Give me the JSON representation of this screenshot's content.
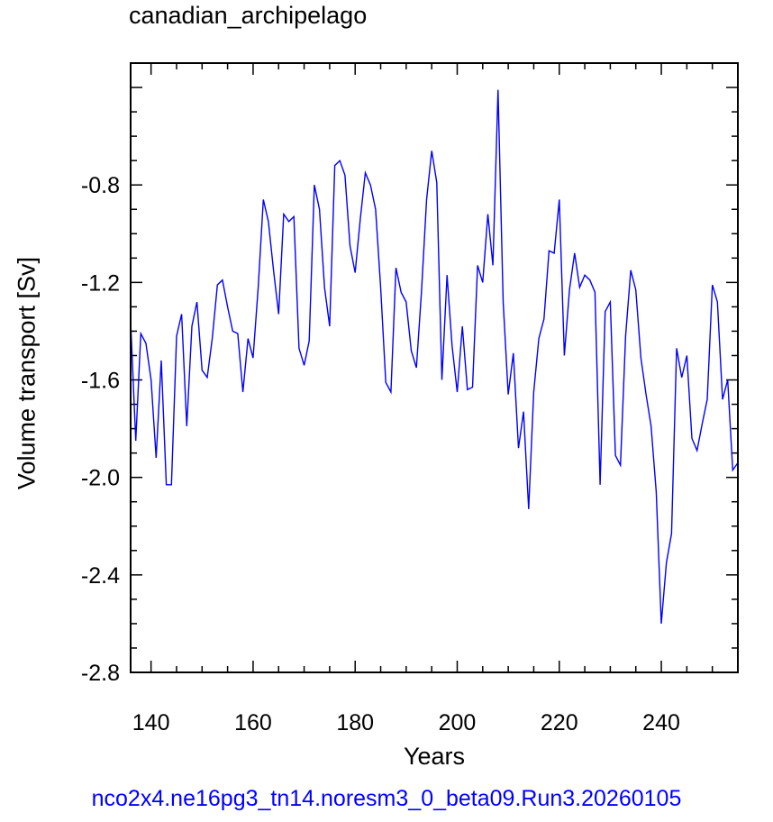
{
  "title": "canadian_archipelago",
  "footer": "nco2x4.ne16pg3_tn14.noresm3_0_beta09.Run3.20260105",
  "chart_data": {
    "type": "line",
    "title": "canadian_archipelago",
    "xlabel": "Years",
    "ylabel": "Volume transport [Sv]",
    "xlim": [
      136,
      255
    ],
    "ylim": [
      -2.8,
      -0.3
    ],
    "xticks": [
      140,
      160,
      180,
      200,
      220,
      240
    ],
    "yticks": [
      -2.8,
      -2.4,
      -2.0,
      -1.6,
      -1.2,
      -0.8
    ],
    "ytick_labels": [
      "-2.8",
      "-2.4",
      "-2.0",
      "-1.6",
      "-1.2",
      "-0.8"
    ],
    "line_color": "#0000ff",
    "grid": false,
    "x": [
      136,
      137,
      138,
      139,
      140,
      141,
      142,
      143,
      144,
      145,
      146,
      147,
      148,
      149,
      150,
      151,
      152,
      153,
      154,
      155,
      156,
      157,
      158,
      159,
      160,
      161,
      162,
      163,
      164,
      165,
      166,
      167,
      168,
      169,
      170,
      171,
      172,
      173,
      174,
      175,
      176,
      177,
      178,
      179,
      180,
      181,
      182,
      183,
      184,
      185,
      186,
      187,
      188,
      189,
      190,
      191,
      192,
      193,
      194,
      195,
      196,
      197,
      198,
      199,
      200,
      201,
      202,
      203,
      204,
      205,
      206,
      207,
      208,
      209,
      210,
      211,
      212,
      213,
      214,
      215,
      216,
      217,
      218,
      219,
      220,
      221,
      222,
      223,
      224,
      225,
      226,
      227,
      228,
      229,
      230,
      231,
      232,
      233,
      234,
      235,
      236,
      237,
      238,
      239,
      240,
      241,
      242,
      243,
      244,
      245,
      246,
      247,
      248,
      249,
      250,
      251,
      252,
      253,
      254,
      255
    ],
    "y": [
      -1.36,
      -1.85,
      -1.41,
      -1.45,
      -1.6,
      -1.92,
      -1.52,
      -2.03,
      -2.03,
      -1.42,
      -1.33,
      -1.79,
      -1.38,
      -1.28,
      -1.56,
      -1.59,
      -1.43,
      -1.21,
      -1.19,
      -1.3,
      -1.4,
      -1.41,
      -1.65,
      -1.43,
      -1.51,
      -1.22,
      -0.86,
      -0.95,
      -1.15,
      -1.33,
      -0.92,
      -0.95,
      -0.93,
      -1.47,
      -1.54,
      -1.44,
      -0.8,
      -0.9,
      -1.22,
      -1.38,
      -0.72,
      -0.7,
      -0.76,
      -1.05,
      -1.16,
      -0.94,
      -0.75,
      -0.8,
      -0.9,
      -1.22,
      -1.61,
      -1.65,
      -1.14,
      -1.24,
      -1.28,
      -1.48,
      -1.55,
      -1.24,
      -0.86,
      -0.66,
      -0.79,
      -1.6,
      -1.17,
      -1.46,
      -1.65,
      -1.38,
      -1.64,
      -1.63,
      -1.13,
      -1.2,
      -0.92,
      -1.13,
      -0.41,
      -1.28,
      -1.66,
      -1.49,
      -1.88,
      -1.73,
      -2.13,
      -1.65,
      -1.43,
      -1.35,
      -1.07,
      -1.08,
      -0.86,
      -1.5,
      -1.23,
      -1.08,
      -1.22,
      -1.17,
      -1.19,
      -1.24,
      -2.03,
      -1.32,
      -1.28,
      -1.91,
      -1.95,
      -1.42,
      -1.15,
      -1.23,
      -1.51,
      -1.66,
      -1.79,
      -2.06,
      -2.6,
      -2.35,
      -2.23,
      -1.47,
      -1.59,
      -1.5,
      -1.84,
      -1.89,
      -1.78,
      -1.68,
      -1.21,
      -1.28,
      -1.68,
      -1.6,
      -1.97,
      -1.94
    ]
  }
}
